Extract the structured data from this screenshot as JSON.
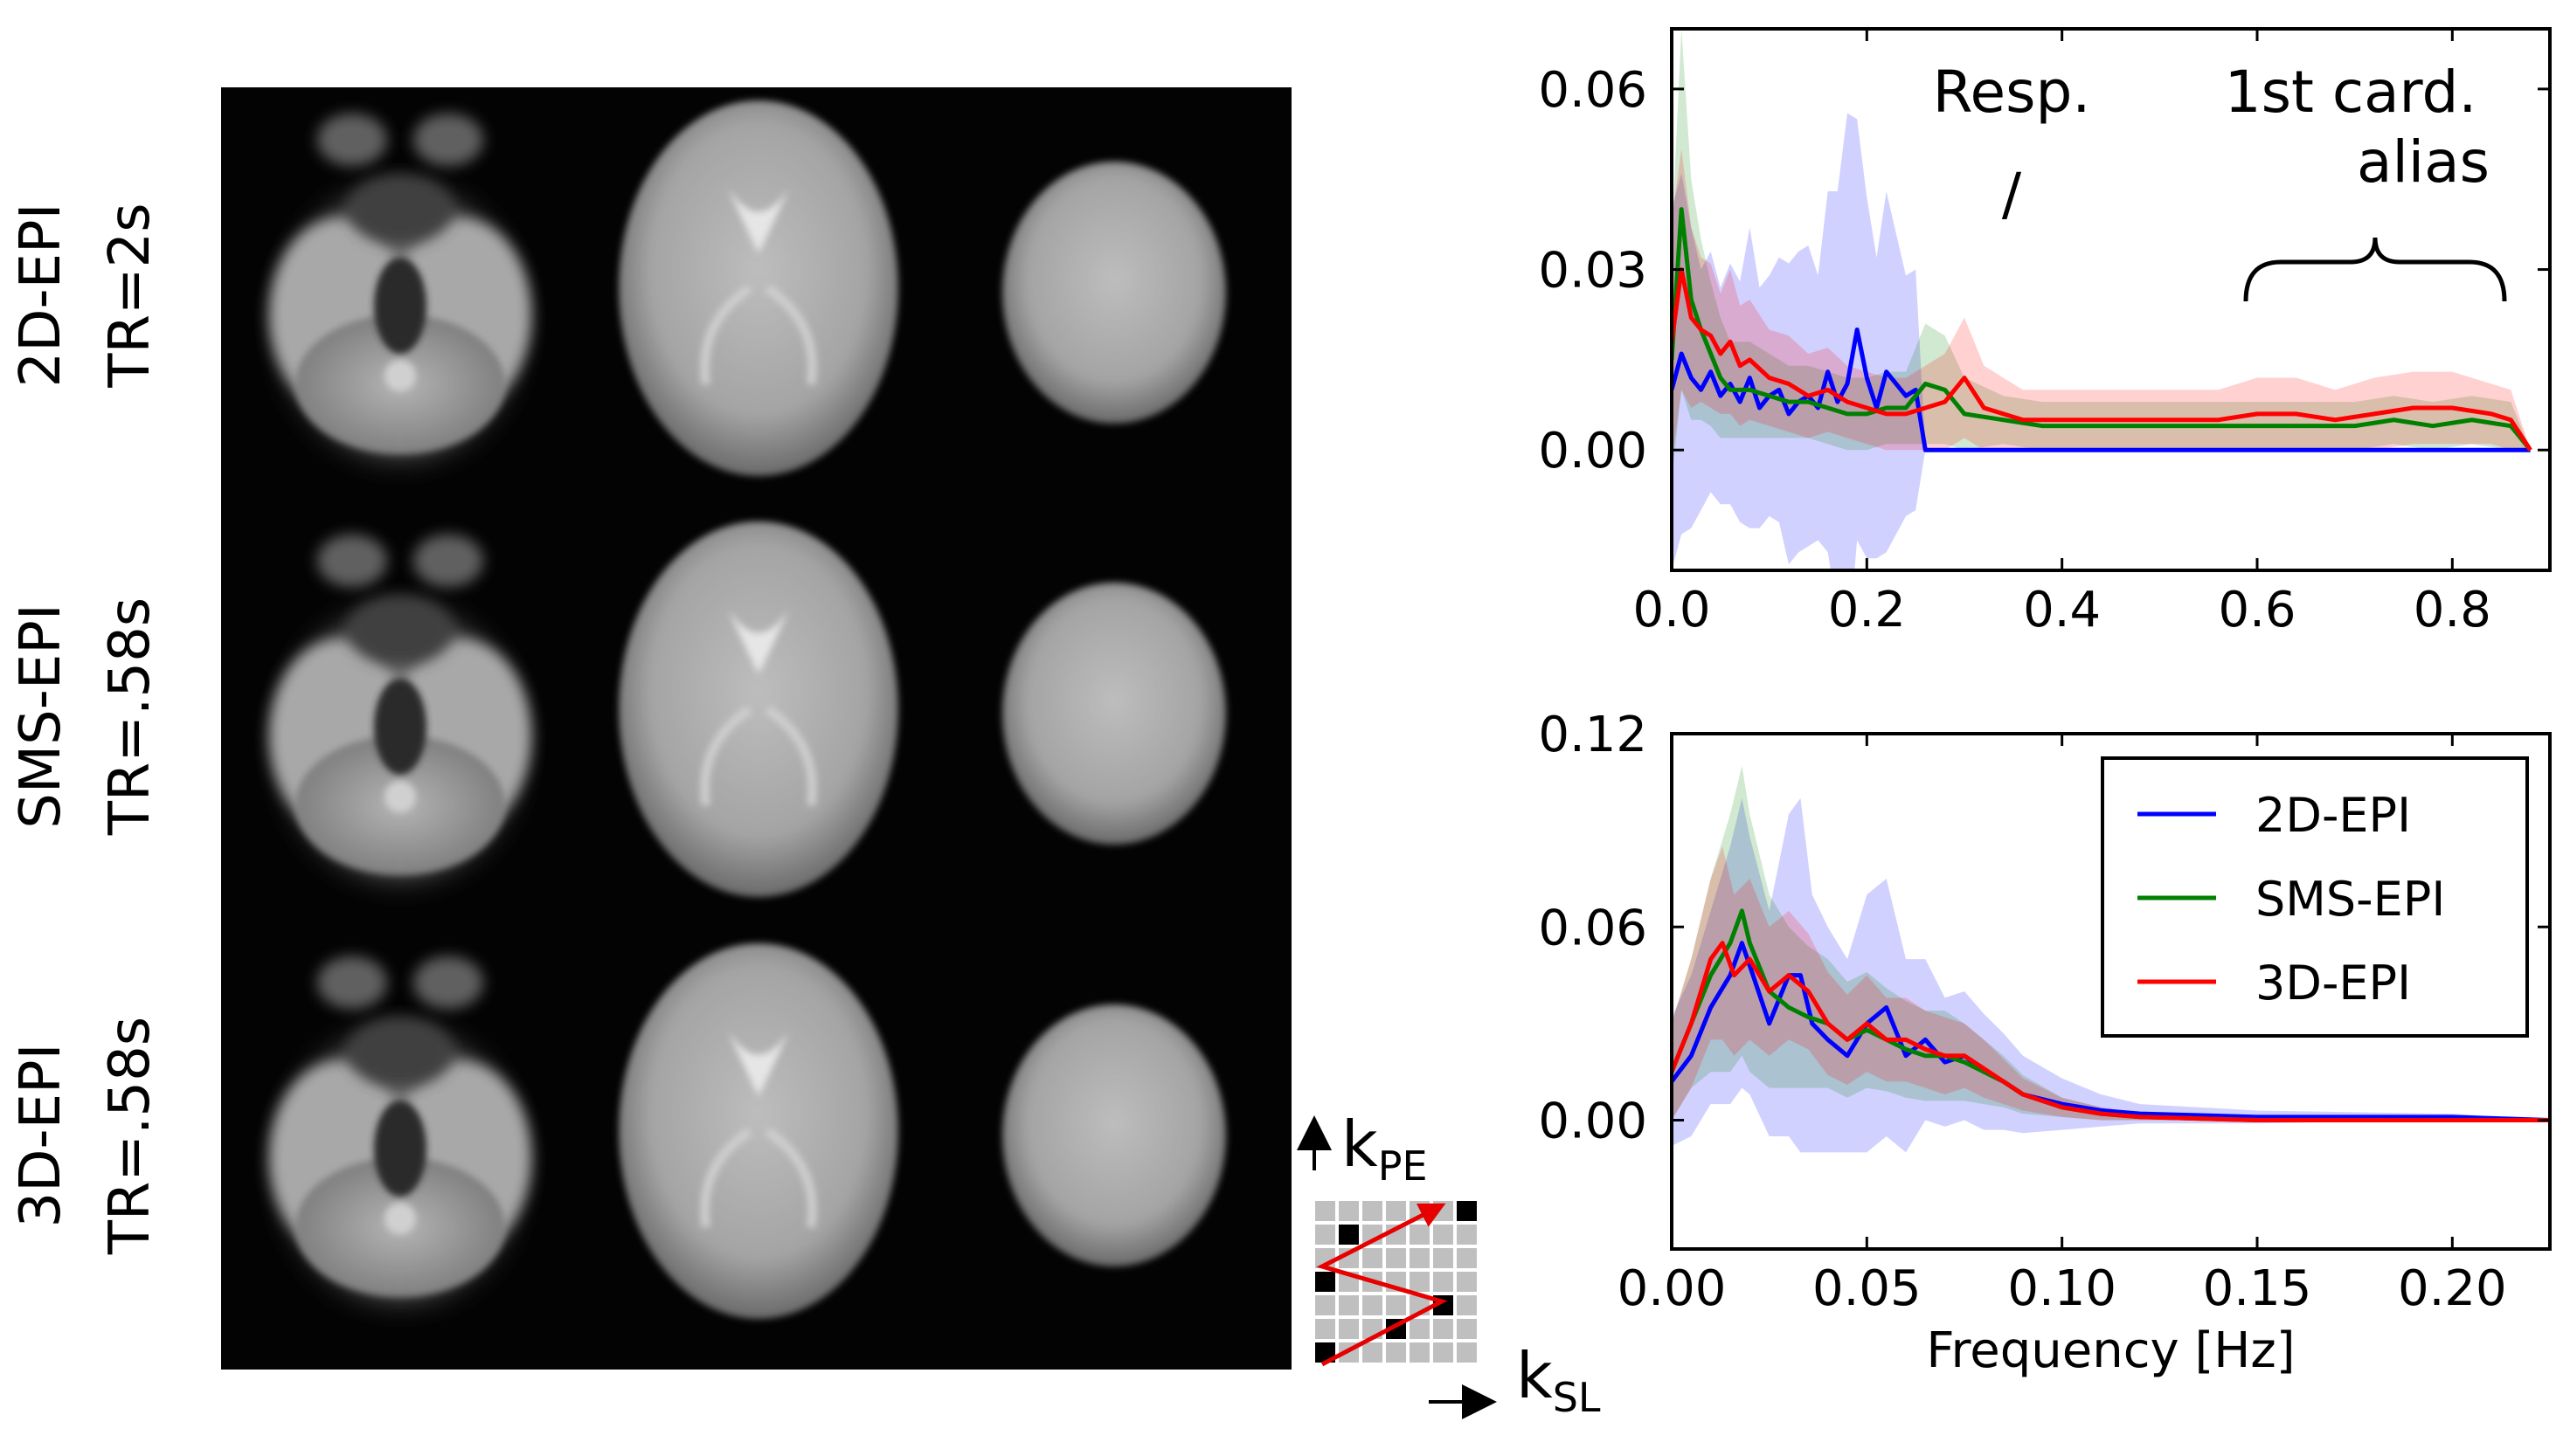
{
  "row_labels": [
    {
      "line1": "2D-EPI",
      "line2": "TR=2s"
    },
    {
      "line1": "SMS-EPI",
      "line2": "TR=.58s"
    },
    {
      "line1": "3D-EPI",
      "line2": "TR=.58s"
    }
  ],
  "kspace": {
    "pe_label": "k",
    "pe_sub": "PE",
    "sl_label": "k",
    "sl_sub": "SL"
  },
  "chart_data": [
    {
      "type": "line",
      "title": "",
      "xlabel": "",
      "ylabel": "",
      "xlim": [
        0.0,
        0.9
      ],
      "ylim": [
        -0.02,
        0.07
      ],
      "xticks": [
        "0.0",
        "0.2",
        "0.4",
        "0.6",
        "0.8"
      ],
      "yticks": [
        "0.00",
        "0.03",
        "0.06"
      ],
      "xtick_values": [
        0.0,
        0.2,
        0.4,
        0.6,
        0.8
      ],
      "ytick_values": [
        0.0,
        0.03,
        0.06
      ],
      "annotations": [
        "Resp.",
        "/",
        "1st card.",
        "alias"
      ],
      "series": [
        {
          "color": "#0000ff",
          "x": [
            0,
            0.01,
            0.02,
            0.03,
            0.04,
            0.05,
            0.06,
            0.07,
            0.08,
            0.09,
            0.1,
            0.11,
            0.12,
            0.13,
            0.14,
            0.15,
            0.16,
            0.17,
            0.18,
            0.19,
            0.2,
            0.21,
            0.22,
            0.23,
            0.24,
            0.25,
            0.26,
            0.4,
            0.6,
            0.86,
            0.88
          ],
          "y": [
            0.01,
            0.016,
            0.012,
            0.01,
            0.013,
            0.009,
            0.011,
            0.008,
            0.012,
            0.007,
            0.009,
            0.01,
            0.006,
            0.008,
            0.009,
            0.007,
            0.013,
            0.008,
            0.011,
            0.02,
            0.012,
            0.007,
            0.013,
            0.011,
            0.009,
            0.01,
            0.0,
            0.0,
            0.0,
            0.0,
            0.0
          ],
          "band": [
            0.03,
            0.03,
            0.025,
            0.02,
            0.02,
            0.018,
            0.02,
            0.02,
            0.025,
            0.02,
            0.02,
            0.022,
            0.025,
            0.025,
            0.025,
            0.022,
            0.03,
            0.035,
            0.045,
            0.035,
            0.03,
            0.025,
            0.03,
            0.025,
            0.02,
            0.02,
            0.0,
            0.0,
            0.0,
            0.0,
            0.0
          ]
        },
        {
          "color": "#008000",
          "x": [
            0,
            0.01,
            0.02,
            0.03,
            0.04,
            0.05,
            0.06,
            0.08,
            0.1,
            0.12,
            0.14,
            0.16,
            0.18,
            0.2,
            0.22,
            0.24,
            0.26,
            0.28,
            0.3,
            0.34,
            0.38,
            0.42,
            0.46,
            0.5,
            0.54,
            0.58,
            0.62,
            0.66,
            0.7,
            0.74,
            0.78,
            0.82,
            0.86,
            0.88
          ],
          "y": [
            0.015,
            0.04,
            0.025,
            0.02,
            0.016,
            0.012,
            0.01,
            0.01,
            0.009,
            0.008,
            0.008,
            0.007,
            0.006,
            0.006,
            0.007,
            0.007,
            0.011,
            0.01,
            0.006,
            0.005,
            0.004,
            0.004,
            0.004,
            0.004,
            0.004,
            0.004,
            0.004,
            0.004,
            0.004,
            0.005,
            0.004,
            0.005,
            0.004,
            0.0
          ],
          "band": [
            0.02,
            0.03,
            0.02,
            0.015,
            0.012,
            0.01,
            0.008,
            0.008,
            0.007,
            0.006,
            0.006,
            0.006,
            0.006,
            0.006,
            0.006,
            0.006,
            0.01,
            0.009,
            0.006,
            0.004,
            0.004,
            0.004,
            0.004,
            0.004,
            0.004,
            0.004,
            0.004,
            0.004,
            0.004,
            0.004,
            0.004,
            0.004,
            0.004,
            0.0
          ]
        },
        {
          "color": "#ff0000",
          "x": [
            0,
            0.01,
            0.02,
            0.03,
            0.04,
            0.05,
            0.06,
            0.07,
            0.08,
            0.1,
            0.12,
            0.14,
            0.16,
            0.18,
            0.2,
            0.22,
            0.24,
            0.26,
            0.28,
            0.3,
            0.32,
            0.36,
            0.4,
            0.44,
            0.48,
            0.52,
            0.56,
            0.6,
            0.64,
            0.68,
            0.72,
            0.76,
            0.8,
            0.84,
            0.86,
            0.88
          ],
          "y": [
            0.018,
            0.03,
            0.022,
            0.02,
            0.019,
            0.016,
            0.018,
            0.014,
            0.015,
            0.012,
            0.011,
            0.009,
            0.01,
            0.008,
            0.007,
            0.006,
            0.006,
            0.007,
            0.008,
            0.012,
            0.007,
            0.005,
            0.005,
            0.005,
            0.005,
            0.005,
            0.005,
            0.006,
            0.006,
            0.005,
            0.006,
            0.007,
            0.007,
            0.006,
            0.005,
            0.0
          ],
          "band": [
            0.02,
            0.02,
            0.015,
            0.012,
            0.012,
            0.01,
            0.012,
            0.01,
            0.01,
            0.008,
            0.008,
            0.007,
            0.007,
            0.006,
            0.006,
            0.006,
            0.006,
            0.007,
            0.008,
            0.01,
            0.007,
            0.005,
            0.005,
            0.005,
            0.005,
            0.005,
            0.005,
            0.006,
            0.006,
            0.005,
            0.006,
            0.006,
            0.006,
            0.005,
            0.005,
            0.0
          ]
        }
      ]
    },
    {
      "type": "line",
      "title": "",
      "xlabel": "Frequency [Hz]",
      "ylabel": "",
      "xlim": [
        0.0,
        0.225
      ],
      "ylim": [
        -0.04,
        0.12
      ],
      "xticks": [
        "0.00",
        "0.05",
        "0.10",
        "0.15",
        "0.20"
      ],
      "yticks": [
        "0.00",
        "0.06",
        "0.12"
      ],
      "xtick_values": [
        0.0,
        0.05,
        0.1,
        0.15,
        0.2
      ],
      "ytick_values": [
        0.0,
        0.06,
        0.12
      ],
      "legend_position": "top-right",
      "series": [
        {
          "name": "2D-EPI",
          "color": "#0000ff",
          "x": [
            0,
            0.005,
            0.01,
            0.015,
            0.018,
            0.02,
            0.025,
            0.03,
            0.033,
            0.036,
            0.04,
            0.045,
            0.05,
            0.055,
            0.06,
            0.065,
            0.07,
            0.075,
            0.08,
            0.085,
            0.09,
            0.1,
            0.11,
            0.12,
            0.15,
            0.2,
            0.225
          ],
          "y": [
            0.012,
            0.02,
            0.035,
            0.045,
            0.055,
            0.048,
            0.03,
            0.045,
            0.045,
            0.03,
            0.025,
            0.02,
            0.03,
            0.035,
            0.02,
            0.025,
            0.018,
            0.02,
            0.015,
            0.012,
            0.008,
            0.005,
            0.003,
            0.002,
            0.001,
            0.001,
            0.0
          ],
          "band": [
            0.02,
            0.025,
            0.03,
            0.04,
            0.045,
            0.04,
            0.035,
            0.05,
            0.055,
            0.04,
            0.035,
            0.03,
            0.04,
            0.04,
            0.03,
            0.025,
            0.02,
            0.02,
            0.018,
            0.015,
            0.012,
            0.008,
            0.005,
            0.003,
            0.002,
            0.001,
            0.0
          ]
        },
        {
          "name": "SMS-EPI",
          "color": "#008000",
          "x": [
            0,
            0.005,
            0.01,
            0.015,
            0.018,
            0.02,
            0.025,
            0.03,
            0.035,
            0.04,
            0.045,
            0.05,
            0.055,
            0.06,
            0.065,
            0.07,
            0.075,
            0.08,
            0.085,
            0.09,
            0.1,
            0.11,
            0.12,
            0.15,
            0.2,
            0.225
          ],
          "y": [
            0.015,
            0.03,
            0.045,
            0.055,
            0.065,
            0.055,
            0.04,
            0.035,
            0.032,
            0.03,
            0.025,
            0.028,
            0.025,
            0.022,
            0.02,
            0.02,
            0.018,
            0.015,
            0.012,
            0.008,
            0.004,
            0.002,
            0.001,
            0.0,
            0.0,
            0.0
          ],
          "band": [
            0.015,
            0.02,
            0.03,
            0.04,
            0.045,
            0.04,
            0.03,
            0.025,
            0.022,
            0.02,
            0.018,
            0.018,
            0.016,
            0.015,
            0.014,
            0.014,
            0.012,
            0.01,
            0.008,
            0.006,
            0.003,
            0.002,
            0.001,
            0.0,
            0.0,
            0.0
          ]
        },
        {
          "name": "3D-EPI",
          "color": "#ff0000",
          "x": [
            0,
            0.005,
            0.01,
            0.013,
            0.016,
            0.02,
            0.025,
            0.03,
            0.035,
            0.04,
            0.045,
            0.05,
            0.055,
            0.06,
            0.065,
            0.07,
            0.075,
            0.08,
            0.085,
            0.09,
            0.1,
            0.11,
            0.12,
            0.15,
            0.2,
            0.225
          ],
          "y": [
            0.015,
            0.03,
            0.05,
            0.055,
            0.045,
            0.05,
            0.04,
            0.045,
            0.04,
            0.03,
            0.025,
            0.03,
            0.025,
            0.025,
            0.022,
            0.02,
            0.02,
            0.016,
            0.012,
            0.008,
            0.004,
            0.002,
            0.001,
            0.0,
            0.0,
            0.0
          ],
          "band": [
            0.015,
            0.02,
            0.025,
            0.03,
            0.025,
            0.025,
            0.02,
            0.02,
            0.018,
            0.016,
            0.014,
            0.015,
            0.013,
            0.013,
            0.012,
            0.012,
            0.01,
            0.009,
            0.007,
            0.005,
            0.003,
            0.002,
            0.001,
            0.0,
            0.0,
            0.0
          ]
        }
      ]
    }
  ]
}
